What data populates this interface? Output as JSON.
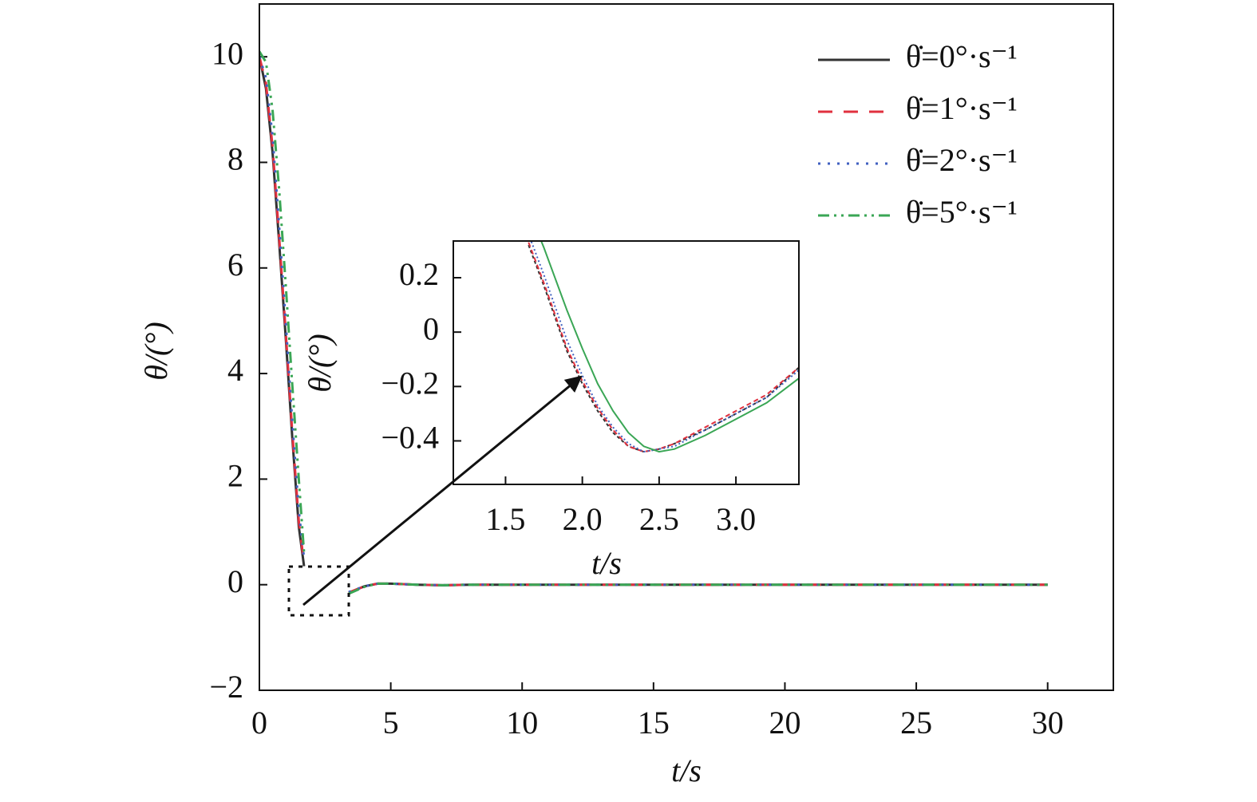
{
  "chart_data": [
    {
      "type": "line",
      "xlabel": "t/s",
      "ylabel": "θ/(°)",
      "x": [
        0,
        0.25,
        0.5,
        0.75,
        1.0,
        1.25,
        1.5,
        1.7,
        2.0,
        2.5,
        3.0,
        3.4,
        4,
        4.5,
        5,
        6,
        7,
        8,
        10,
        15,
        20,
        25,
        30
      ],
      "series": [
        {
          "name": "θ̇=0°·s⁻¹",
          "color": "#333333",
          "dash": "none",
          "values": [
            10,
            9.4,
            8.2,
            6.5,
            4.7,
            2.8,
            1.1,
            0.35,
            null,
            null,
            null,
            -0.15,
            -0.03,
            0.02,
            0.02,
            0,
            -0.01,
            0,
            0,
            0,
            0,
            0,
            0
          ]
        },
        {
          "name": "θ̇=1°·s⁻¹",
          "color": "#e0303e",
          "dash": "18,14",
          "values": [
            10,
            9.5,
            8.3,
            6.6,
            4.8,
            2.9,
            1.2,
            0.4,
            null,
            null,
            null,
            -0.15,
            -0.03,
            0.02,
            0.02,
            0,
            -0.01,
            0,
            0,
            0,
            0,
            0,
            0
          ]
        },
        {
          "name": "θ̇=2°·s⁻¹",
          "color": "#4060c0",
          "dash": "3,9",
          "values": [
            10,
            9.6,
            8.5,
            6.8,
            5.0,
            3.1,
            1.4,
            0.5,
            null,
            null,
            null,
            -0.14,
            -0.03,
            0.02,
            0.02,
            0,
            -0.01,
            0,
            0,
            0,
            0,
            0,
            0
          ]
        },
        {
          "name": "θ̇=5°·s⁻¹",
          "color": "#3aa655",
          "dash": "14,6,3,6,3,6",
          "values": [
            10.1,
            9.9,
            9.0,
            7.5,
            5.7,
            3.8,
            2.0,
            0.6,
            null,
            null,
            null,
            -0.17,
            -0.04,
            0.02,
            0.02,
            0,
            -0.01,
            0,
            0,
            0,
            0,
            0,
            0
          ]
        }
      ],
      "xlim": [
        0,
        32.5
      ],
      "ylim": [
        -2,
        11
      ],
      "xticks": [
        0,
        5,
        10,
        15,
        20,
        25,
        30
      ],
      "yticks": [
        {
          "value": -2,
          "label": "−2"
        },
        0,
        2,
        4,
        6,
        8,
        10
      ],
      "legend": "upper right"
    },
    {
      "type": "line",
      "xlabel": "t/s",
      "ylabel": "θ/(°)",
      "x": [
        1.65,
        1.75,
        1.9,
        2.0,
        2.1,
        2.2,
        2.3,
        2.4,
        2.5,
        2.6,
        2.8,
        3.0,
        3.2,
        3.41
      ],
      "series": [
        {
          "color": "#333333",
          "dash": "4,3",
          "values": [
            0.32,
            0.17,
            -0.07,
            -0.19,
            -0.29,
            -0.37,
            -0.42,
            -0.44,
            -0.43,
            -0.41,
            -0.36,
            -0.3,
            -0.24,
            -0.13
          ]
        },
        {
          "color": "#e0303e",
          "dash": "6,4",
          "values": [
            0.33,
            0.18,
            -0.06,
            -0.18,
            -0.28,
            -0.36,
            -0.42,
            -0.44,
            -0.43,
            -0.41,
            -0.35,
            -0.29,
            -0.23,
            -0.13
          ]
        },
        {
          "color": "#4060c0",
          "dash": "2,3",
          "values": [
            0.36,
            0.21,
            -0.03,
            -0.16,
            -0.27,
            -0.35,
            -0.41,
            -0.44,
            -0.43,
            -0.42,
            -0.36,
            -0.3,
            -0.24,
            -0.14
          ]
        },
        {
          "color": "#3aa655",
          "dash": "none",
          "values": [
            0.45,
            0.31,
            0.08,
            -0.06,
            -0.19,
            -0.29,
            -0.37,
            -0.42,
            -0.44,
            -0.43,
            -0.38,
            -0.32,
            -0.26,
            -0.17
          ]
        }
      ],
      "xlim": [
        1.16,
        3.41
      ],
      "ylim": [
        -0.56,
        0.335
      ],
      "xticks": [
        1.5,
        {
          "value": 2.0,
          "label": "2.0"
        },
        2.5,
        {
          "value": 3.0,
          "label": "3.0"
        }
      ],
      "yticks": [
        {
          "value": -0.4,
          "label": "−0.4"
        },
        {
          "value": -0.2,
          "label": "−0.2"
        },
        0,
        0.2
      ]
    }
  ]
}
